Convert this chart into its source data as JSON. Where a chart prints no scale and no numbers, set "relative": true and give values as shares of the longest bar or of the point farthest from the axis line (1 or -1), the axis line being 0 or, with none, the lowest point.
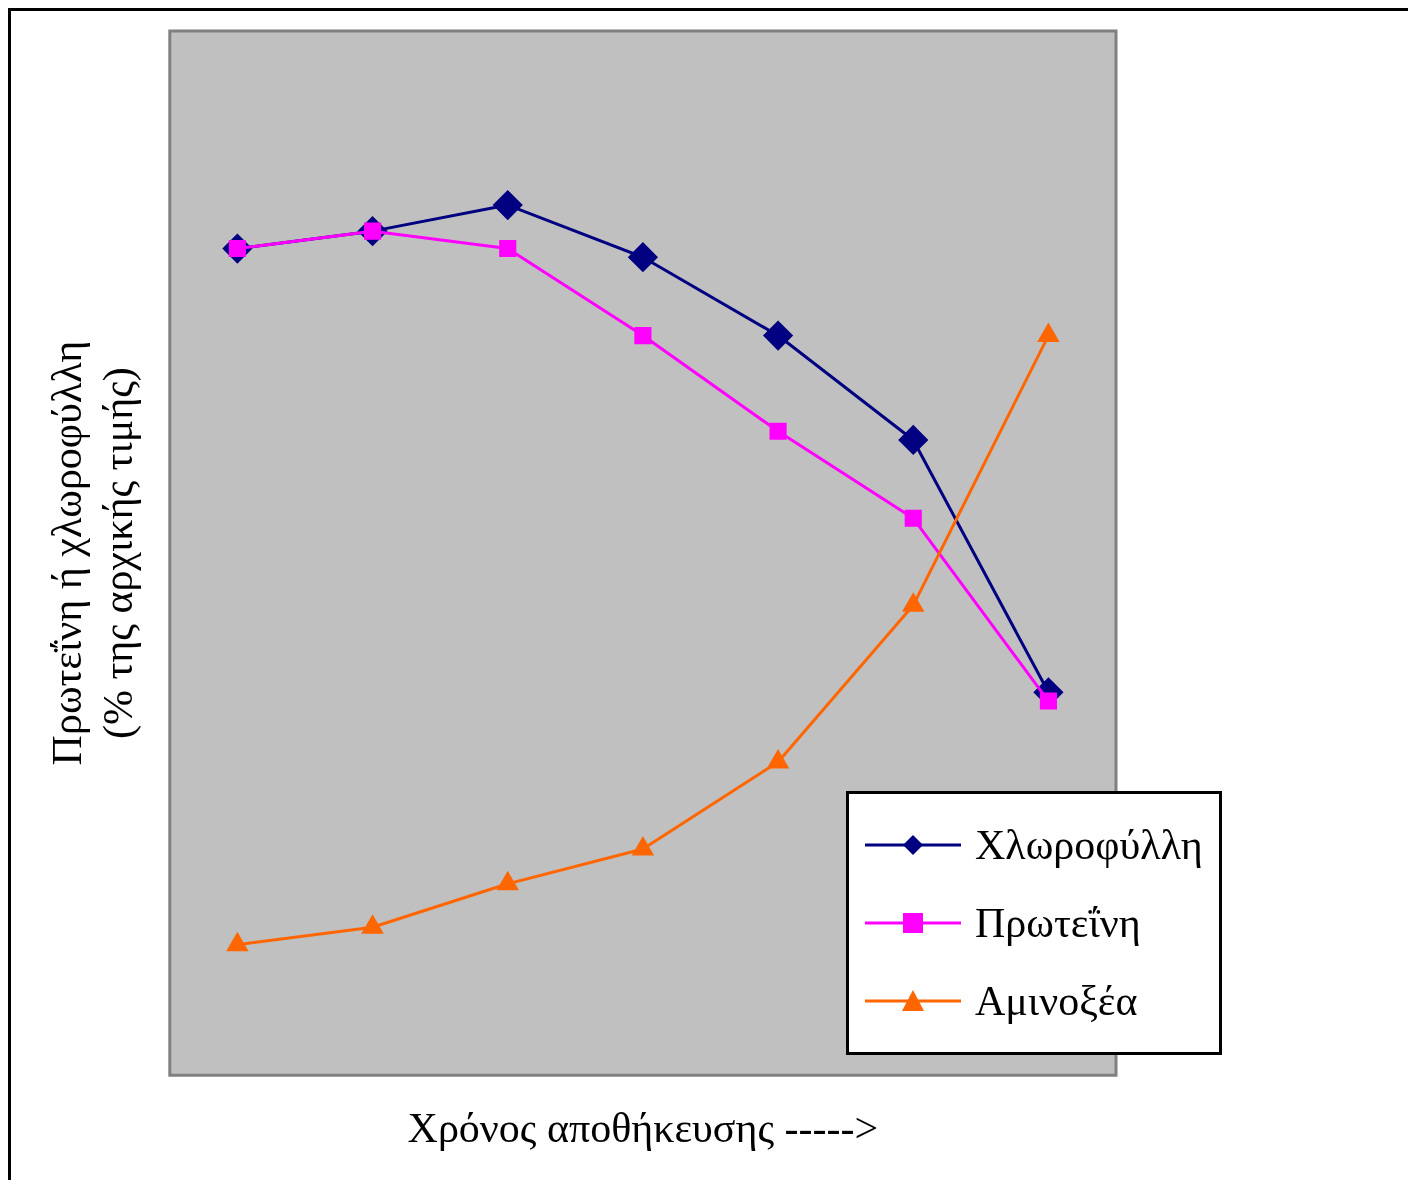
{
  "chart_data": {
    "type": "line",
    "relative": true,
    "xlabel": "Χρόνος αποθήκευσης ----->",
    "ylabel": "Πρωτεΐνη ή χλωροφύλλη\n(% της αρχικής τιμής)",
    "categories": [
      null,
      null,
      null,
      null,
      null,
      null,
      null
    ],
    "grid": false,
    "legend": "bottom right",
    "line_style": "solid",
    "series": [
      {
        "name": "Χλωροφύλλη",
        "color": "#000080",
        "marker": "diamond",
        "values": [
          0.95,
          0.97,
          1.0,
          0.94,
          0.85,
          0.73,
          0.44
        ]
      },
      {
        "name": "Πρωτεΐνη",
        "color": "#ff00ff",
        "marker": "square",
        "values": [
          0.95,
          0.97,
          0.95,
          0.85,
          0.74,
          0.64,
          0.43
        ]
      },
      {
        "name": "Αμινοξέα",
        "color": "#ff6600",
        "marker": "triangle",
        "values": [
          0.15,
          0.17,
          0.22,
          0.26,
          0.36,
          0.54,
          0.85
        ]
      }
    ]
  }
}
